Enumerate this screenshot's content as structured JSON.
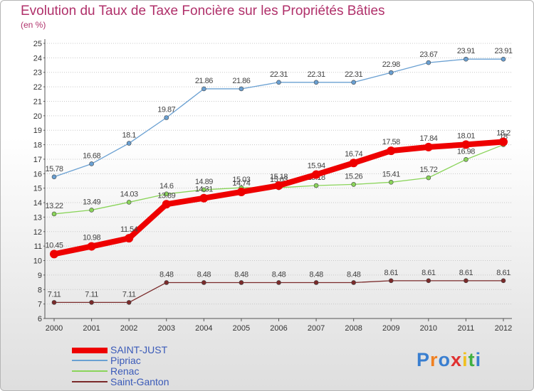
{
  "chart_data": {
    "type": "line",
    "title": "Evolution du Taux de Taxe Foncière sur les Propriétés Bâties",
    "subtitle": "(en %)",
    "x": [
      "2000",
      "2001",
      "2002",
      "2003",
      "2004",
      "2005",
      "2006",
      "2007",
      "2008",
      "2009",
      "2010",
      "2011",
      "2012"
    ],
    "ylim": [
      6,
      25
    ],
    "yticks": [
      "6",
      "7",
      "8",
      "9",
      "10",
      "11",
      "12",
      "13",
      "14",
      "15",
      "16",
      "17",
      "18",
      "19",
      "20",
      "21",
      "22",
      "23",
      "24",
      "25"
    ],
    "grid": "horizontal, dotted",
    "legend_position": "bottom-left",
    "series": [
      {
        "name": "Pipriac",
        "color": "#6aa0d2",
        "values": [
          15.78,
          16.68,
          18.1,
          19.87,
          21.86,
          21.86,
          22.31,
          22.31,
          22.31,
          22.98,
          23.67,
          23.91,
          23.91
        ],
        "labels": [
          "15.78",
          "16.68",
          "18.1",
          "19.87",
          "21.86",
          "21.86",
          "22.31",
          "22.31",
          "22.31",
          "22.98",
          "23.67",
          "23.91",
          "23.91"
        ]
      },
      {
        "name": "Renac",
        "color": "#8ad45a",
        "values": [
          13.22,
          13.49,
          14.03,
          14.6,
          14.89,
          15.03,
          15.03,
          15.18,
          15.26,
          15.41,
          15.72,
          16.98,
          18
        ],
        "labels": [
          "13.22",
          "13.49",
          "14.03",
          "14.6",
          "14.89",
          "15.03",
          "15.03",
          "15.18",
          "15.26",
          "15.41",
          "15.72",
          "16.98",
          "18"
        ]
      },
      {
        "name": "Saint-Ganton",
        "color": "#7a2a2a",
        "values": [
          7.11,
          7.11,
          7.11,
          8.48,
          8.48,
          8.48,
          8.48,
          8.48,
          8.48,
          8.61,
          8.61,
          8.61,
          8.61
        ],
        "labels": [
          "7.11",
          "7.11",
          "7.11",
          "8.48",
          "8.48",
          "8.48",
          "8.48",
          "8.48",
          "8.48",
          "8.61",
          "8.61",
          "8.61",
          "8.61"
        ]
      },
      {
        "name": "SAINT-JUST",
        "color": "#ee0000",
        "values": [
          10.45,
          10.98,
          11.54,
          13.89,
          14.31,
          14.74,
          15.18,
          15.94,
          16.74,
          17.58,
          17.84,
          18.01,
          18.2
        ],
        "labels": [
          "10.45",
          "10.98",
          "11.54",
          "13.89",
          "14.31",
          "14.74",
          "15.18",
          "15.94",
          "16.74",
          "17.58",
          "17.84",
          "18.01",
          "18.2"
        ]
      }
    ],
    "legend": [
      "SAINT-JUST",
      "Pipriac",
      "Renac",
      "Saint-Ganton"
    ]
  },
  "logo": {
    "letters": [
      "P",
      "r",
      "o",
      "x",
      "i",
      "t",
      "i"
    ],
    "colors": [
      "#3a7fd0",
      "#f08020",
      "#3a7fd0",
      "#e03030",
      "#f0c020",
      "#40b040",
      "#3a7fd0"
    ]
  }
}
